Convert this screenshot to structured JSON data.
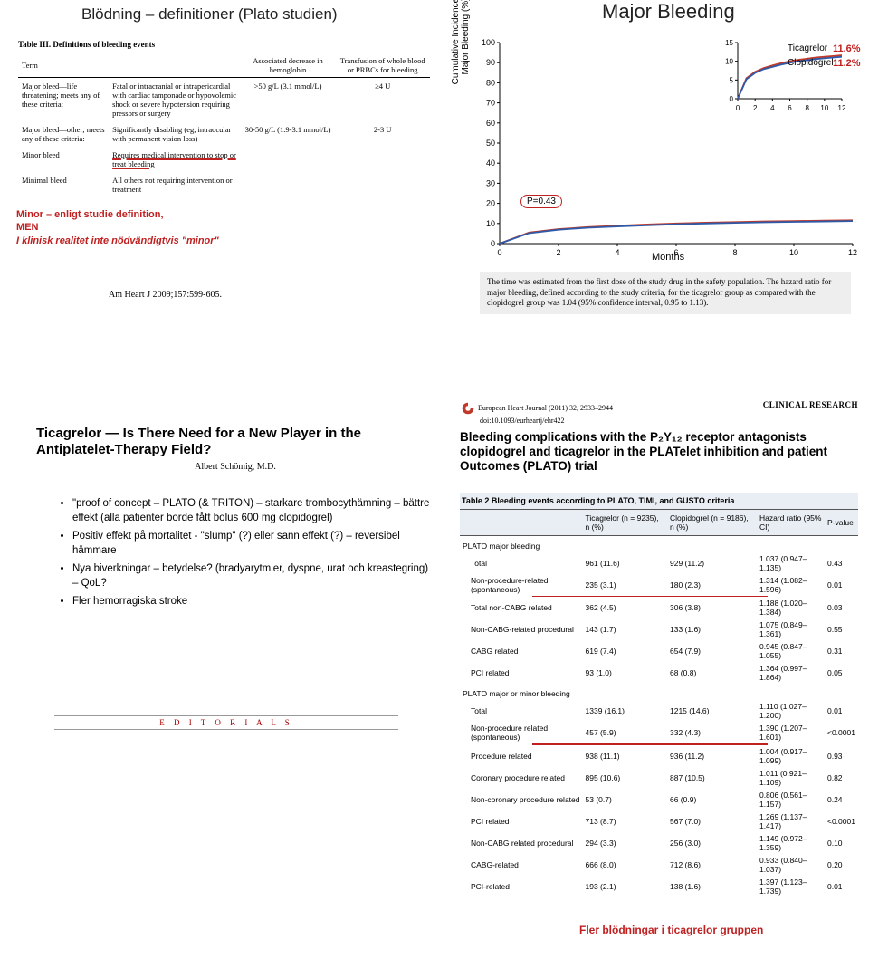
{
  "slide1": {
    "title_left": "Blödning – definitioner (Plato studien)",
    "title_right": "Major Bleeding",
    "table_caption": "Table III. Definitions of bleeding events",
    "headers": [
      "Term",
      "",
      "Associated decrease in hemoglobin",
      "Transfusion of whole blood or PRBCs for bleeding"
    ],
    "rows": [
      [
        "Major bleed—life threatening; meets any of these criteria:",
        "Fatal or intracranial or intrapericardial with cardiac tamponade or hypovolemic shock or severe hypotension requiring pressors or surgery",
        ">50 g/L (3.1 mmol/L)",
        "≥4 U"
      ],
      [
        "Major bleed—other; meets any of these criteria:",
        "Significantly disabling (eg, intraocular with permanent vision loss)",
        "30-50 g/L (1.9-3.1 mmol/L)",
        "2-3 U"
      ],
      [
        "Minor bleed",
        "Requires medical intervention to stop or treat bleeding",
        "",
        ""
      ],
      [
        "Minimal bleed",
        "All others not requiring intervention or treatment",
        "",
        ""
      ]
    ],
    "minor_note_lines": [
      "Minor – enligt studie definition,",
      "MEN",
      "I klinisk realitet inte nödvändigtvis \"minor\""
    ],
    "ahj": "Am Heart J 2009;157:599-605.",
    "chart": {
      "type": "line",
      "ylabel": "Cumulative Incidence of Major Bleeding (%)",
      "xlabel": "Months",
      "ymax": 100,
      "ytick": 10,
      "xmax": 12,
      "xtick": 2,
      "inset_ymax": 15,
      "inset_ytick": 5,
      "inset_xmax": 12,
      "inset_xtick": 2,
      "series": [
        {
          "name": "Ticagrelor",
          "color": "#c0392b",
          "pct": "11.6%",
          "points": [
            [
              0,
              0
            ],
            [
              1,
              5.5
            ],
            [
              2,
              7.2
            ],
            [
              3,
              8.2
            ],
            [
              4,
              8.9
            ],
            [
              5,
              9.5
            ],
            [
              6,
              10.0
            ],
            [
              7,
              10.4
            ],
            [
              8,
              10.7
            ],
            [
              9,
              11.0
            ],
            [
              10,
              11.2
            ],
            [
              11,
              11.4
            ],
            [
              12,
              11.6
            ]
          ]
        },
        {
          "name": "Clopidogrel",
          "color": "#2e5aa8",
          "pct": "11.2%",
          "points": [
            [
              0,
              0
            ],
            [
              1,
              5.2
            ],
            [
              2,
              6.9
            ],
            [
              3,
              7.9
            ],
            [
              4,
              8.5
            ],
            [
              5,
              9.1
            ],
            [
              6,
              9.6
            ],
            [
              7,
              10.0
            ],
            [
              8,
              10.3
            ],
            [
              9,
              10.6
            ],
            [
              10,
              10.8
            ],
            [
              11,
              11.0
            ],
            [
              12,
              11.2
            ]
          ]
        }
      ],
      "pvalue": "P=0.43",
      "line_width": 1.8,
      "bg": "#ffffff",
      "axis_color": "#000000",
      "tick_fontsize": 9
    },
    "footnote": "The time was estimated from the first dose of the study drug in the safety population. The hazard ratio for major bleeding, defined according to the study criteria, for the ticagrelor group as compared with the clopidogrel group was 1.04 (95% confidence interval, 0.95 to 1.13)."
  },
  "slide2": {
    "editorial_title": "Ticagrelor — Is There Need for a New Player in the Antiplatelet-Therapy Field?",
    "editorial_author": "Albert Schömig, M.D.",
    "bullets": [
      "\"proof of concept – PLATO (& TRITON) – starkare trombocythämning – bättre effekt (alla patienter borde fått bolus 600 mg clopidogrel)",
      "Positiv effekt på mortalitet - \"slump\" (?) eller sann effekt (?) – reversibel hämmare",
      "Nya biverkningar – betydelse? (bradyarytmier, dyspne, urat och kreastegring) – QoL?",
      "Fler hemorragiska stroke"
    ],
    "editorials_label": "E D I T O R I A L S",
    "ehj_citation": "European Heart Journal (2011) 32, 2933–2944",
    "ehj_doi": "doi:10.1093/eurheartj/ehr422",
    "clinical_research": "CLINICAL RESEARCH",
    "article_title": "Bleeding complications with the P₂Y₁₂ receptor antagonists clopidogrel and ticagrelor in the PLATelet inhibition and patient Outcomes (PLATO) trial",
    "table2": {
      "caption": "Table 2  Bleeding events according to PLATO, TIMI, and GUSTO criteria",
      "headers": [
        "",
        "Ticagrelor (n = 9235), n (%)",
        "Clopidogrel (n = 9186), n (%)",
        "Hazard ratio (95% CI)",
        "P-value"
      ],
      "sections": [
        {
          "label": "PLATO major bleeding",
          "rows": [
            [
              "Total",
              "961 (11.6)",
              "929 (11.2)",
              "1.037 (0.947–1.135)",
              "0.43"
            ],
            [
              "Non-procedure-related (spontaneous)",
              "235 (3.1)",
              "180 (2.3)",
              "1.314 (1.082–1.596)",
              "0.01"
            ],
            [
              "Total non-CABG related",
              "362 (4.5)",
              "306 (3.8)",
              "1.188 (1.020–1.384)",
              "0.03"
            ],
            [
              "Non-CABG-related procedural",
              "143 (1.7)",
              "133 (1.6)",
              "1.075 (0.849–1.361)",
              "0.55"
            ],
            [
              "CABG related",
              "619 (7.4)",
              "654 (7.9)",
              "0.945 (0.847–1.055)",
              "0.31"
            ],
            [
              "PCI related",
              "93 (1.0)",
              "68 (0.8)",
              "1.364 (0.997–1.864)",
              "0.05"
            ]
          ]
        },
        {
          "label": "PLATO major or minor bleeding",
          "rows": [
            [
              "Total",
              "1339 (16.1)",
              "1215 (14.6)",
              "1.110 (1.027–1.200)",
              "0.01"
            ],
            [
              "Non-procedure related (spontaneous)",
              "457 (5.9)",
              "332 (4.3)",
              "1.390 (1.207–1.601)",
              "<0.0001"
            ],
            [
              "Procedure related",
              "938 (11.1)",
              "936 (11.2)",
              "1.004 (0.917–1.099)",
              "0.93"
            ],
            [
              "Coronary procedure related",
              "895 (10.6)",
              "887 (10.5)",
              "1.011 (0.921–1.109)",
              "0.82"
            ],
            [
              "Non-coronary procedure related",
              "53 (0.7)",
              "66 (0.9)",
              "0.806 (0.561–1.157)",
              "0.24"
            ],
            [
              "PCI related",
              "713 (8.7)",
              "567 (7.0)",
              "1.269 (1.137–1.417)",
              "<0.0001"
            ],
            [
              "Non-CABG related procedural",
              "294 (3.3)",
              "256 (3.0)",
              "1.149 (0.972–1.359)",
              "0.10"
            ],
            [
              "CABG-related",
              "666 (8.0)",
              "712 (8.6)",
              "0.933 (0.840–1.037)",
              "0.20"
            ],
            [
              "PCI-related",
              "193 (2.1)",
              "138 (1.6)",
              "1.397 (1.123–1.739)",
              "0.01"
            ]
          ]
        }
      ],
      "red_underline_after_rows": [
        "Non-procedure-related (spontaneous)",
        "Non-procedure related (spontaneous)"
      ]
    },
    "red_conclusion": "Fler blödningar i ticagrelor gruppen"
  }
}
